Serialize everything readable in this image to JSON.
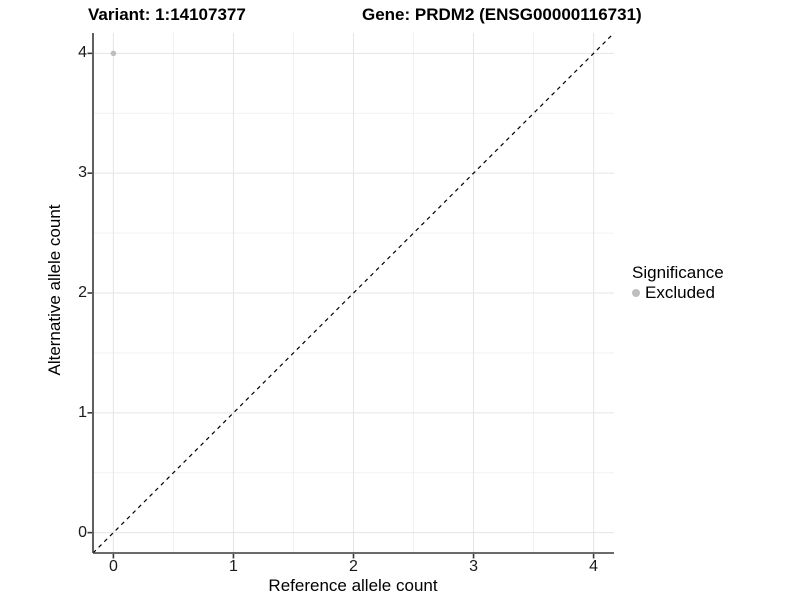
{
  "header": {
    "variant_title": "Variant: 1:14107377",
    "gene_title": "Gene: PRDM2 (ENSG00000116731)"
  },
  "chart_data": {
    "type": "scatter",
    "xlabel": "Reference allele count",
    "ylabel": "Alternative allele count",
    "xlim": [
      -0.17,
      4.17
    ],
    "ylim": [
      -0.17,
      4.17
    ],
    "xticks": [
      0,
      1,
      2,
      3,
      4
    ],
    "yticks": [
      0,
      1,
      2,
      3,
      4
    ],
    "xminor": [
      0.5,
      1.5,
      2.5,
      3.5
    ],
    "yminor": [
      0.5,
      1.5,
      2.5,
      3.5
    ],
    "grid": "major+minor",
    "reference_line": {
      "equation": "y = x",
      "style": "dashed",
      "color": "#000000"
    },
    "series": [
      {
        "name": "Excluded",
        "marker": "circle",
        "color": "#bebebe",
        "points": [
          [
            0,
            4
          ]
        ]
      }
    ],
    "legend": {
      "title": "Significance",
      "position": "right",
      "items": [
        {
          "label": "Excluded",
          "color": "#bebebe"
        }
      ]
    },
    "colors": {
      "background": "#ffffff",
      "grid_major": "#e5e5e5",
      "grid_minor": "#f2f2f2",
      "axis_line": "#383838",
      "tick_mark": "#383838",
      "point": "#bebebe"
    }
  }
}
